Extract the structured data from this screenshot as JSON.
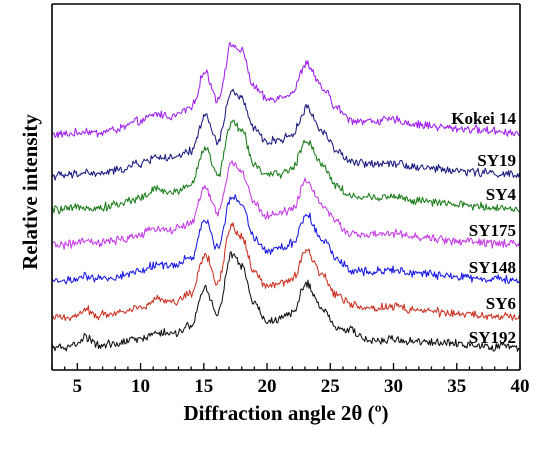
{
  "chart_data": {
    "type": "line",
    "title": "",
    "xlabel": "Diffraction angle 2θ (º)",
    "ylabel": "Relative intensity",
    "xlim": [
      3,
      40
    ],
    "x_ticks": [
      5,
      10,
      15,
      20,
      25,
      30,
      35,
      40
    ],
    "y_ticks_shown": false,
    "grid": false,
    "legend": "none (series names printed beside each trace on the right)",
    "peak_positions_2theta": [
      5.6,
      11.3,
      15.1,
      17.2,
      18.0,
      23.1,
      26.6
    ],
    "x": [
      3,
      4,
      5,
      5.6,
      6.5,
      8,
      10,
      11.3,
      12.5,
      14,
      15.1,
      16.1,
      17.2,
      18,
      19,
      20,
      21,
      22,
      23.1,
      24.5,
      25.5,
      26.6,
      28,
      30,
      32,
      35,
      38,
      40
    ],
    "series": [
      {
        "name": "Kokei 14",
        "color": "#a020f0",
        "values": [
          0.03,
          0.03,
          0.04,
          0.06,
          0.04,
          0.07,
          0.14,
          0.2,
          0.18,
          0.25,
          0.55,
          0.32,
          0.78,
          0.72,
          0.42,
          0.32,
          0.34,
          0.38,
          0.62,
          0.4,
          0.25,
          0.15,
          0.14,
          0.15,
          0.11,
          0.08,
          0.06,
          0.04
        ]
      },
      {
        "name": "SY19",
        "color": "#1c1c80",
        "values": [
          0.02,
          0.02,
          0.03,
          0.05,
          0.03,
          0.06,
          0.12,
          0.18,
          0.16,
          0.22,
          0.52,
          0.3,
          0.72,
          0.66,
          0.4,
          0.3,
          0.32,
          0.36,
          0.58,
          0.38,
          0.23,
          0.13,
          0.12,
          0.13,
          0.09,
          0.06,
          0.04,
          0.02
        ]
      },
      {
        "name": "SY4",
        "color": "#1b7d1b",
        "values": [
          0.02,
          0.02,
          0.03,
          0.05,
          0.03,
          0.06,
          0.12,
          0.19,
          0.16,
          0.23,
          0.54,
          0.3,
          0.75,
          0.68,
          0.4,
          0.3,
          0.32,
          0.36,
          0.6,
          0.38,
          0.22,
          0.13,
          0.12,
          0.13,
          0.09,
          0.06,
          0.04,
          0.02
        ]
      },
      {
        "name": "SY175",
        "color": "#c63be8",
        "values": [
          0.02,
          0.02,
          0.03,
          0.05,
          0.03,
          0.05,
          0.1,
          0.16,
          0.14,
          0.2,
          0.5,
          0.28,
          0.7,
          0.63,
          0.36,
          0.26,
          0.28,
          0.32,
          0.55,
          0.34,
          0.2,
          0.11,
          0.1,
          0.11,
          0.08,
          0.05,
          0.03,
          0.02
        ]
      },
      {
        "name": "SY148",
        "color": "#1a1ae6",
        "values": [
          0.02,
          0.02,
          0.03,
          0.05,
          0.03,
          0.05,
          0.1,
          0.16,
          0.14,
          0.21,
          0.52,
          0.29,
          0.73,
          0.66,
          0.38,
          0.27,
          0.29,
          0.33,
          0.57,
          0.35,
          0.2,
          0.11,
          0.1,
          0.11,
          0.08,
          0.05,
          0.03,
          0.02
        ]
      },
      {
        "name": "SY6",
        "color": "#cc3322",
        "values": [
          0.02,
          0.02,
          0.04,
          0.09,
          0.04,
          0.06,
          0.11,
          0.17,
          0.15,
          0.22,
          0.55,
          0.31,
          0.78,
          0.7,
          0.4,
          0.28,
          0.3,
          0.34,
          0.58,
          0.36,
          0.21,
          0.13,
          0.1,
          0.11,
          0.08,
          0.05,
          0.03,
          0.02
        ]
      },
      {
        "name": "SY192",
        "color": "#111111",
        "values": [
          0.02,
          0.02,
          0.05,
          0.11,
          0.04,
          0.05,
          0.09,
          0.15,
          0.13,
          0.2,
          0.52,
          0.3,
          0.8,
          0.7,
          0.38,
          0.24,
          0.26,
          0.31,
          0.55,
          0.33,
          0.18,
          0.16,
          0.08,
          0.09,
          0.07,
          0.05,
          0.03,
          0.02
        ]
      }
    ]
  }
}
